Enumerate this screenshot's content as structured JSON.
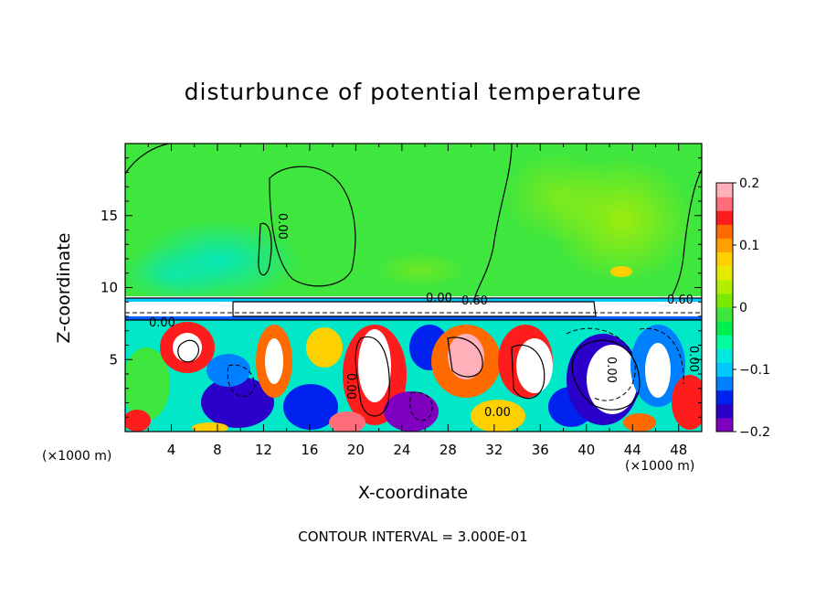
{
  "chart_data": {
    "type": "heatmap",
    "title": "disturbunce of potential temperature",
    "xlabel": "X-coordinate",
    "ylabel": "Z-coordinate",
    "x_unit_left": "(×1000 m)",
    "x_unit_right": "(×1000 m)",
    "xlim": [
      0,
      50
    ],
    "ylim": [
      0,
      20
    ],
    "x_ticks": [
      4,
      8,
      12,
      16,
      20,
      24,
      28,
      32,
      36,
      40,
      44,
      48
    ],
    "y_ticks": [
      5,
      10,
      15
    ],
    "colorbar": {
      "range": [
        -0.2,
        0.2
      ],
      "ticks": [
        "0.2",
        "0.1",
        "0",
        "−0.1",
        "−0.2"
      ],
      "colors": [
        "#7f00bf",
        "#2b00c8",
        "#0022ee",
        "#0080ff",
        "#00c8ff",
        "#00e8e0",
        "#00ffa0",
        "#00f050",
        "#3ee63e",
        "#7aea00",
        "#b2ee00",
        "#e6ea00",
        "#ffd000",
        "#ffa000",
        "#ff6a00",
        "#ff1c1c",
        "#ff6e7a",
        "#ffb0b8"
      ]
    },
    "contour_labels": [
      "0.00",
      "0.00",
      "0.60",
      "0.00",
      "0.00",
      "0.00",
      "0.00",
      "0.60",
      "0.00"
    ],
    "footer": "CONTOUR INTERVAL = 3.000E-01"
  }
}
